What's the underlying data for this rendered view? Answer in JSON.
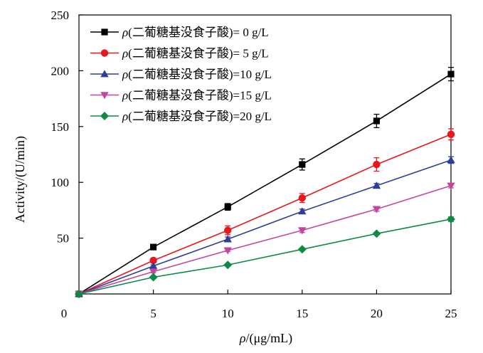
{
  "chart_data": {
    "type": "line",
    "x": [
      0,
      5,
      10,
      15,
      20,
      25
    ],
    "xlim": [
      0,
      25
    ],
    "ylim": [
      0,
      250
    ],
    "xticks": [
      0,
      5,
      10,
      15,
      20,
      25
    ],
    "yticks": [
      50,
      100,
      150,
      200,
      250
    ],
    "xlabel_symbol": "ρ",
    "xlabel_rest": "/(μg/mL)",
    "ylabel": "Activity/(U/min)",
    "origin_label": "0",
    "grid": false,
    "legend_position": "top-left",
    "legend_symbol": "ρ",
    "series": [
      {
        "name": "(二葡糖基没食子酸)=  0 g/L",
        "marker": "square",
        "color": "#000000",
        "values": [
          0,
          42,
          78,
          116,
          155,
          197
        ],
        "errors": [
          0,
          2,
          3,
          5,
          6,
          6
        ]
      },
      {
        "name": "(二葡糖基没食子酸)=  5 g/L",
        "marker": "circle",
        "color": "#e8171e",
        "values": [
          0,
          30,
          57,
          86,
          116,
          143
        ],
        "errors": [
          0,
          2,
          4,
          4,
          6,
          5
        ]
      },
      {
        "name": "(二葡糖基没食子酸)=10 g/L",
        "marker": "triangle-up",
        "color": "#2d3f94",
        "values": [
          0,
          25,
          49,
          74,
          97,
          120
        ],
        "errors": [
          0,
          1,
          2,
          2,
          2,
          3
        ]
      },
      {
        "name": "(二葡糖基没食子酸)=15 g/L",
        "marker": "triangle-down",
        "color": "#c3469e",
        "values": [
          0,
          20,
          39,
          57,
          76,
          97
        ],
        "errors": [
          0,
          1,
          1,
          2,
          2,
          2
        ]
      },
      {
        "name": "(二葡糖基没食子酸)=20 g/L",
        "marker": "diamond",
        "color": "#0e8a47",
        "values": [
          0,
          15,
          26,
          40,
          54,
          67
        ],
        "errors": [
          0,
          1,
          1,
          1,
          1,
          2
        ]
      }
    ]
  }
}
